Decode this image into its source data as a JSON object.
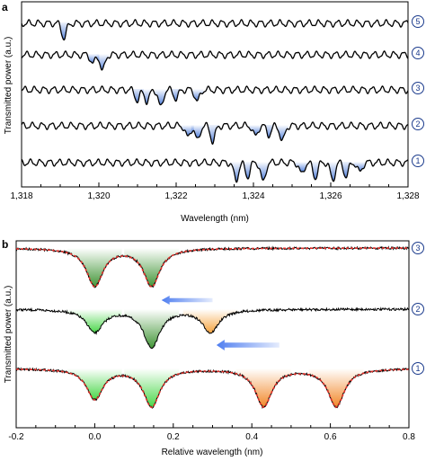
{
  "chart_data": [
    {
      "panel": "a",
      "type": "line",
      "xlabel": "Wavelength (nm)",
      "ylabel": "Transmitted power (a.u.)",
      "xlim": [
        1318,
        1328
      ],
      "x_ticks": [
        "1,318",
        "1,320",
        "1,322",
        "1,324",
        "1,326",
        "1,328"
      ],
      "x_tick_values": [
        1318,
        1320,
        1322,
        1324,
        1326,
        1328
      ],
      "dip_color": "#3f72d6",
      "ripple_period_nm": 0.25,
      "series": [
        {
          "label": "5",
          "dips": [
            {
              "x": 1319.1,
              "depth": 0.75
            }
          ]
        },
        {
          "label": "4",
          "dips": [
            {
              "x": 1319.85,
              "depth": 0.45
            },
            {
              "x": 1320.1,
              "depth": 0.8
            }
          ]
        },
        {
          "label": "3",
          "dips": [
            {
              "x": 1321.0,
              "depth": 0.55
            },
            {
              "x": 1321.25,
              "depth": 0.6
            },
            {
              "x": 1321.6,
              "depth": 0.9
            },
            {
              "x": 1322.0,
              "depth": 0.45
            },
            {
              "x": 1322.55,
              "depth": 0.6
            }
          ]
        },
        {
          "label": "2",
          "dips": [
            {
              "x": 1322.3,
              "depth": 0.6
            },
            {
              "x": 1322.55,
              "depth": 0.75
            },
            {
              "x": 1322.95,
              "depth": 0.8
            },
            {
              "x": 1324.05,
              "depth": 0.55
            },
            {
              "x": 1324.4,
              "depth": 0.45
            },
            {
              "x": 1324.75,
              "depth": 0.8
            }
          ]
        },
        {
          "label": "1",
          "dips": [
            {
              "x": 1323.55,
              "depth": 0.9
            },
            {
              "x": 1323.85,
              "depth": 0.7
            },
            {
              "x": 1324.25,
              "depth": 1.0
            },
            {
              "x": 1325.25,
              "depth": 0.6
            },
            {
              "x": 1325.6,
              "depth": 0.75
            },
            {
              "x": 1326.05,
              "depth": 0.9
            },
            {
              "x": 1326.4,
              "depth": 0.7
            },
            {
              "x": 1326.75,
              "depth": 0.5
            }
          ]
        }
      ]
    },
    {
      "panel": "b",
      "type": "line",
      "xlabel": "Relative wavelength (nm)",
      "ylabel": "Transmitted power (a.u.)",
      "xlim": [
        -0.2,
        0.8
      ],
      "x_ticks": [
        "-0.2",
        "0.0",
        "0.2",
        "0.4",
        "0.6",
        "0.8"
      ],
      "x_tick_values": [
        -0.2,
        0.0,
        0.2,
        0.4,
        0.6,
        0.8
      ],
      "fit_color": "#e0302a",
      "data_color": "#000000",
      "arrow_color": "#4f7ef0",
      "series": [
        {
          "label": "3",
          "fit_dashed": true,
          "dips": [
            {
              "x": 0.0,
              "depth": 1.0,
              "color": "#2e8a22"
            },
            {
              "x": 0.145,
              "depth": 1.0,
              "color": "#2e8a22"
            }
          ]
        },
        {
          "label": "2",
          "fit_dashed": false,
          "dips": [
            {
              "x": 0.0,
              "depth": 0.6,
              "color": "#34d234"
            },
            {
              "x": 0.145,
              "depth": 1.0,
              "color": "#2e8a22"
            },
            {
              "x": 0.295,
              "depth": 0.6,
              "color": "#f59a2b"
            }
          ]
        },
        {
          "label": "1",
          "fit_dashed": true,
          "dips": [
            {
              "x": 0.0,
              "depth": 0.8,
              "color": "#34d234"
            },
            {
              "x": 0.145,
              "depth": 1.0,
              "color": "#34d234"
            },
            {
              "x": 0.43,
              "depth": 1.0,
              "color": "#f07a12"
            },
            {
              "x": 0.615,
              "depth": 1.0,
              "color": "#f07a12"
            }
          ]
        }
      ]
    }
  ],
  "panel_letters": [
    "a",
    "b"
  ]
}
